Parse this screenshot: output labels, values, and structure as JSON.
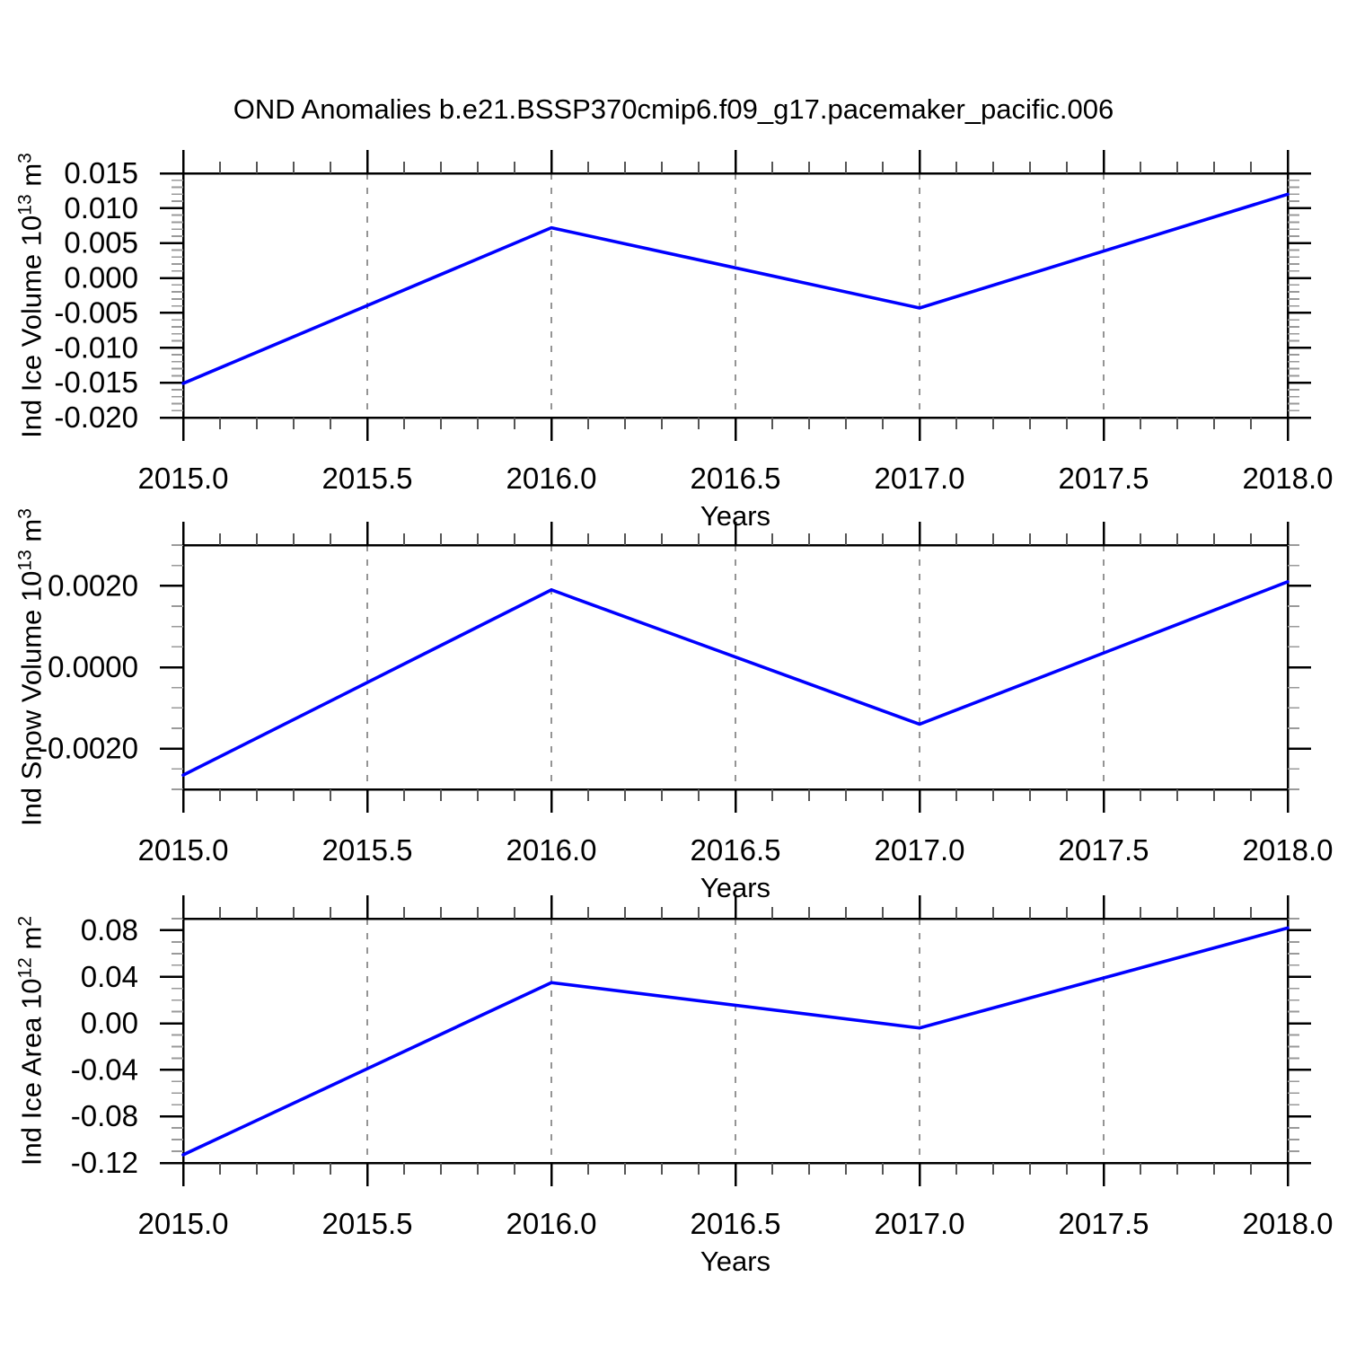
{
  "title": "OND Anomalies b.e21.BSSP370cmip6.f09_g17.pacemaker_pacific.006",
  "figure": {
    "background": "#ffffff",
    "axis_color": "#000000",
    "grid_color": "#888888"
  },
  "chart_data": [
    {
      "type": "line",
      "xlabel": "Years",
      "ylabel": {
        "base": "Ind Ice Volume 10",
        "exp": "13",
        "unit": " m",
        "unit_exp": "3"
      },
      "x": [
        2015.0,
        2016.0,
        2017.0,
        2018.0
      ],
      "y": [
        -0.0151,
        0.0072,
        -0.0043,
        0.012
      ],
      "xlim": [
        2015.0,
        2018.0
      ],
      "ylim": [
        -0.02,
        0.015
      ],
      "xticks": {
        "values": [
          2015.0,
          2015.5,
          2016.0,
          2016.5,
          2017.0,
          2017.5,
          2018.0
        ],
        "labels": [
          "2015.0",
          "2015.5",
          "2016.0",
          "2016.5",
          "2017.0",
          "2017.5",
          "2018.0"
        ],
        "minor_step": 0.1
      },
      "yticks": {
        "values": [
          0.015,
          0.01,
          0.005,
          0.0,
          -0.005,
          -0.01,
          -0.015,
          -0.02
        ],
        "labels": [
          "0.015",
          "0.010",
          "0.005",
          "0.000",
          "-0.005",
          "-0.010",
          "-0.015",
          "-0.020"
        ],
        "minor_step": 0.001
      },
      "grid_x": [
        2015.5,
        2016.0,
        2016.5,
        2017.0,
        2017.5
      ],
      "grid_style": "vertical-dashed",
      "legend": "none",
      "line_color": "#0000ff"
    },
    {
      "type": "line",
      "xlabel": "Years",
      "ylabel": {
        "base": "Ind Snow Volume 10",
        "exp": "13",
        "unit": " m",
        "unit_exp": "3"
      },
      "x": [
        2015.0,
        2016.0,
        2017.0,
        2018.0
      ],
      "y": [
        -0.00265,
        0.0019,
        -0.0014,
        0.0021
      ],
      "xlim": [
        2015.0,
        2018.0
      ],
      "ylim": [
        -0.003,
        0.003
      ],
      "xticks": {
        "values": [
          2015.0,
          2015.5,
          2016.0,
          2016.5,
          2017.0,
          2017.5,
          2018.0
        ],
        "labels": [
          "2015.0",
          "2015.5",
          "2016.0",
          "2016.5",
          "2017.0",
          "2017.5",
          "2018.0"
        ],
        "minor_step": 0.1
      },
      "yticks": {
        "values": [
          0.002,
          0.0,
          -0.002
        ],
        "labels": [
          "0.0020",
          "0.0000",
          "-0.0020"
        ],
        "minor_step": 0.0005
      },
      "grid_x": [
        2015.5,
        2016.0,
        2016.5,
        2017.0,
        2017.5
      ],
      "grid_style": "vertical-dashed",
      "legend": "none",
      "line_color": "#0000ff"
    },
    {
      "type": "line",
      "xlabel": "Years",
      "ylabel": {
        "base": "Ind Ice Area 10",
        "exp": "12",
        "unit": " m",
        "unit_exp": "2"
      },
      "x": [
        2015.0,
        2016.0,
        2017.0,
        2018.0
      ],
      "y": [
        -0.113,
        0.035,
        -0.004,
        0.082
      ],
      "xlim": [
        2015.0,
        2018.0
      ],
      "ylim": [
        -0.12,
        0.09
      ],
      "xticks": {
        "values": [
          2015.0,
          2015.5,
          2016.0,
          2016.5,
          2017.0,
          2017.5,
          2018.0
        ],
        "labels": [
          "2015.0",
          "2015.5",
          "2016.0",
          "2016.5",
          "2017.0",
          "2017.5",
          "2018.0"
        ],
        "minor_step": 0.1
      },
      "yticks": {
        "values": [
          0.08,
          0.04,
          0.0,
          -0.04,
          -0.08,
          -0.12
        ],
        "labels": [
          "0.08",
          "0.04",
          "0.00",
          "-0.04",
          "-0.08",
          "-0.12"
        ],
        "minor_step": 0.01
      },
      "grid_x": [
        2015.5,
        2016.0,
        2016.5,
        2017.0,
        2017.5
      ],
      "grid_style": "vertical-dashed",
      "legend": "none",
      "line_color": "#0000ff"
    }
  ]
}
